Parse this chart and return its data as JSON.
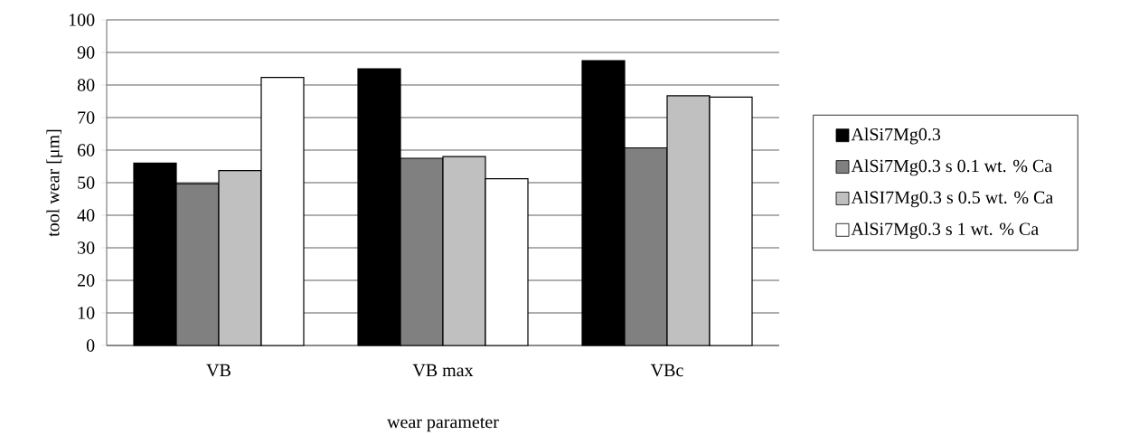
{
  "chart_data": {
    "type": "bar",
    "xlabel": "wear parameter",
    "ylabel": "tool wear [μm]",
    "categories": [
      "VB",
      "VB max",
      "VBc"
    ],
    "series": [
      {
        "name": "AlSi7Mg0.3",
        "color": "#000000",
        "values": [
          56,
          85,
          87.5
        ]
      },
      {
        "name": "AlSi7Mg0.3 s 0.1 wt. % Ca",
        "color": "#808080",
        "values": [
          49.7,
          57.5,
          60.7
        ]
      },
      {
        "name": "AlSI7Mg0.3 s 0.5 wt. % Ca",
        "color": "#c0c0c0",
        "values": [
          53.7,
          58,
          76.7
        ]
      },
      {
        "name": "AlSi7Mg0.3 s 1 wt. % Ca",
        "color": "#ffffff",
        "values": [
          82.3,
          51.2,
          76.3
        ]
      }
    ],
    "ylim": [
      0,
      100
    ],
    "yticks": [
      0,
      10,
      20,
      30,
      40,
      50,
      60,
      70,
      80,
      90,
      100
    ],
    "grid": "y",
    "legend": "right"
  }
}
